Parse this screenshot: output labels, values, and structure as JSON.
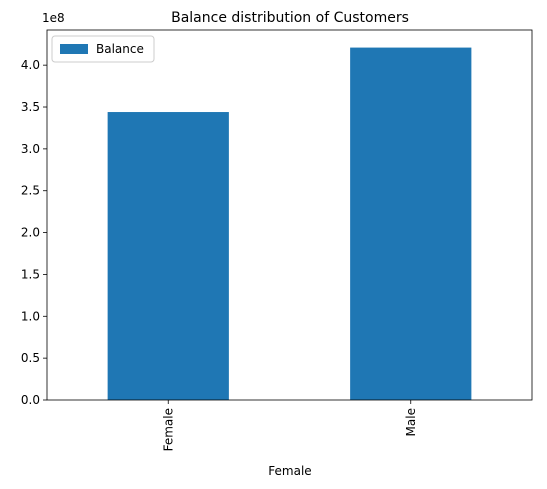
{
  "chart_data": {
    "type": "bar",
    "title": "Balance distribution of Customers",
    "xlabel": "Female",
    "ylabel": "",
    "categories": [
      "Female",
      "Male"
    ],
    "series": [
      {
        "name": "Balance",
        "values": [
          344000000,
          421000000
        ],
        "color": "#1f77b4"
      }
    ],
    "ylim": [
      0,
      442000000
    ],
    "yticks": [
      0,
      50000000,
      100000000,
      150000000,
      200000000,
      250000000,
      300000000,
      350000000,
      400000000
    ],
    "ytick_labels": [
      "0.0",
      "0.5",
      "1.0",
      "1.5",
      "2.0",
      "2.5",
      "3.0",
      "3.5",
      "4.0"
    ],
    "offset_text": "1e8",
    "legend_position": "upper-left",
    "grid": false,
    "xtick_rotation": 90
  }
}
